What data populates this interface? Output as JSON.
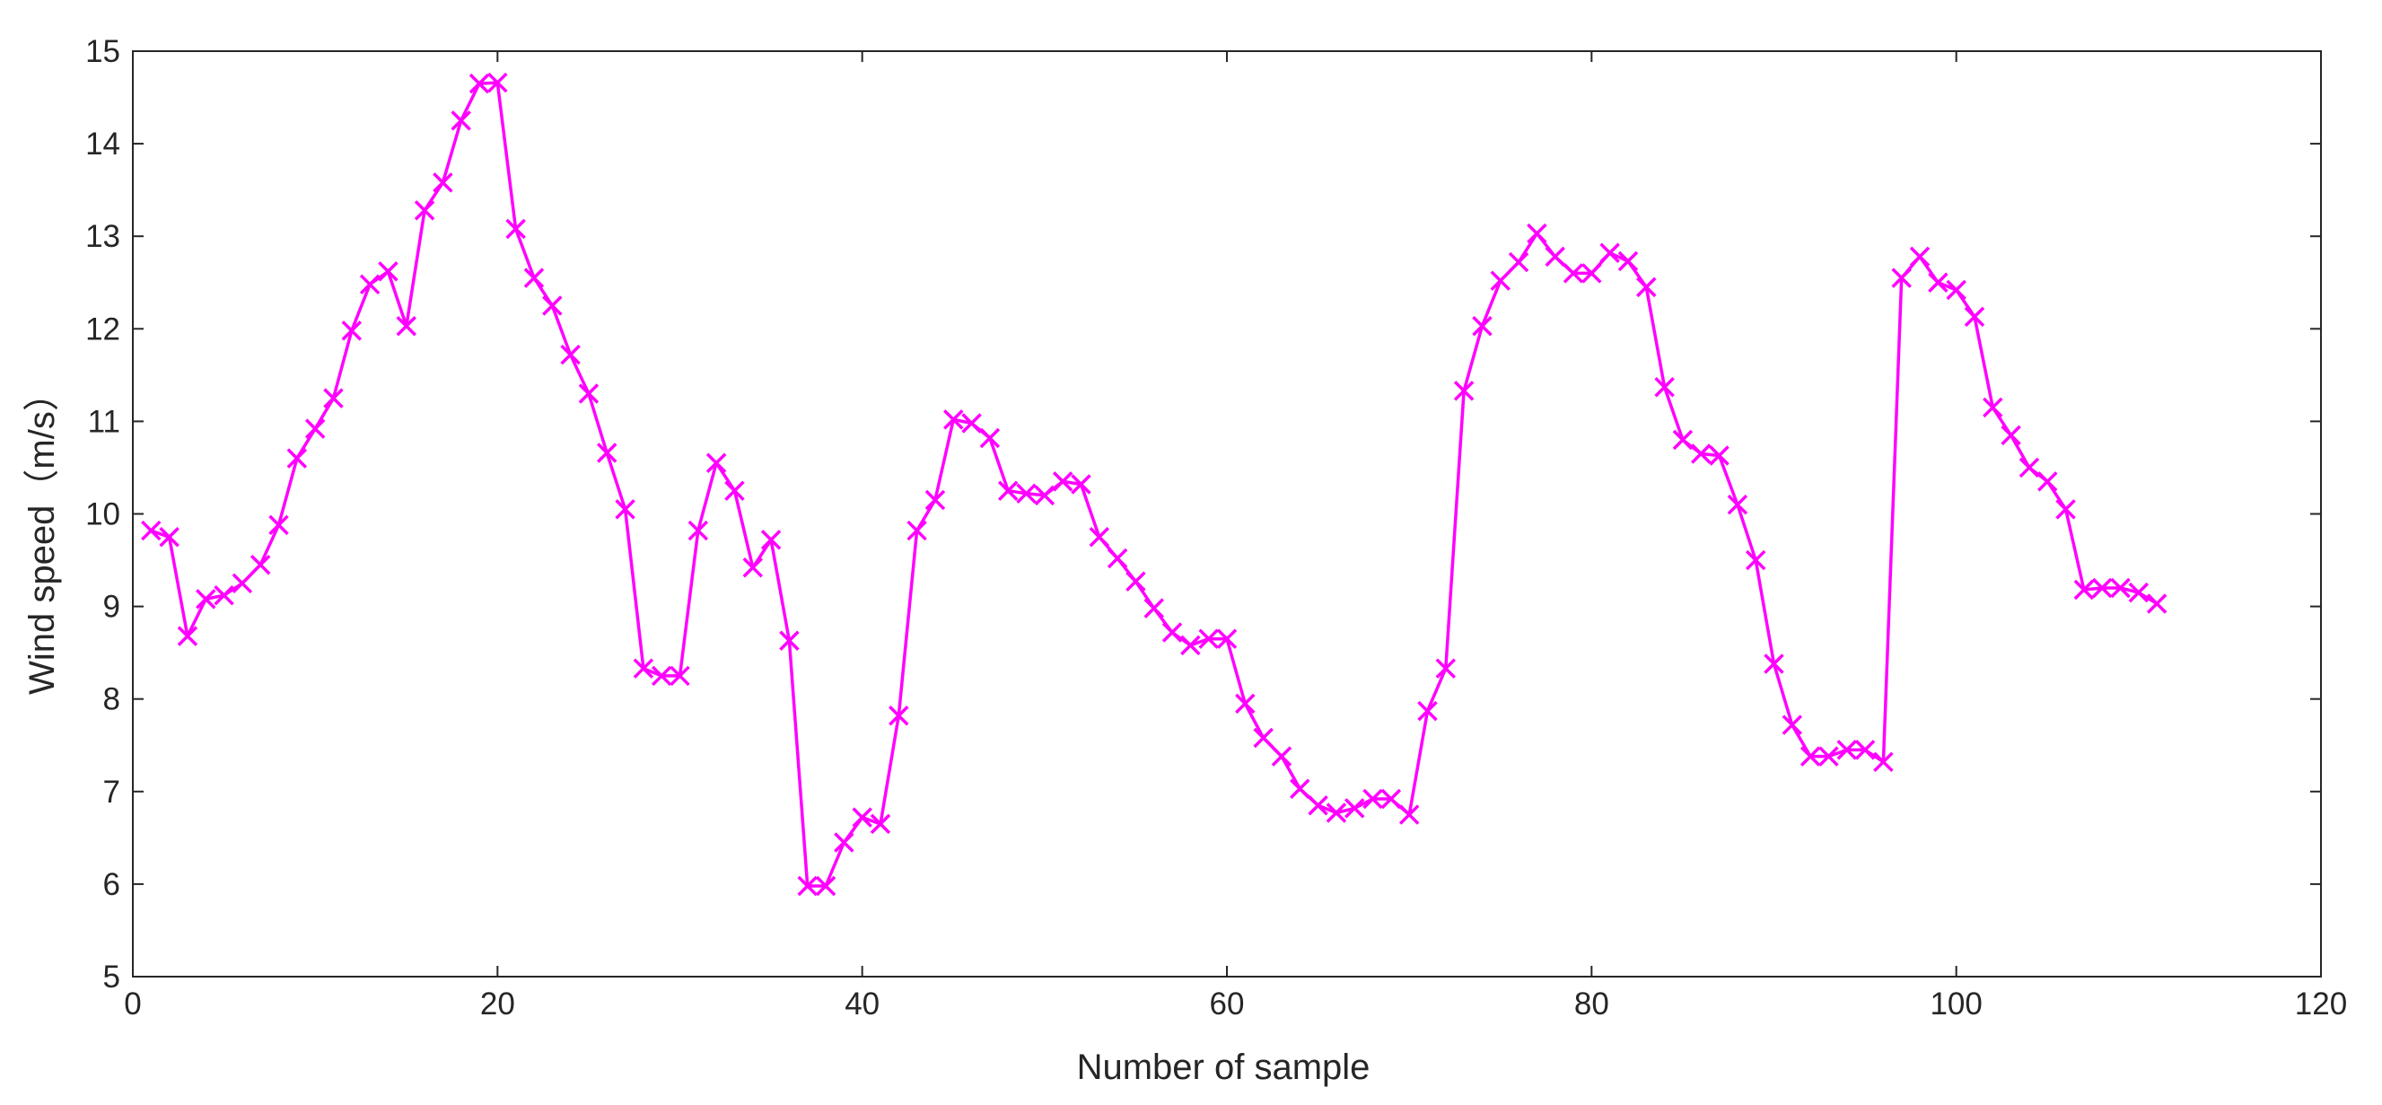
{
  "chart_data": {
    "type": "line",
    "xlabel": "Number of sample",
    "ylabel": "Wind speed（m/s）",
    "xlim": [
      0,
      120
    ],
    "ylim": [
      5,
      15
    ],
    "xticks": [
      0,
      20,
      40,
      60,
      80,
      100,
      120
    ],
    "yticks": [
      5,
      6,
      7,
      8,
      9,
      10,
      11,
      12,
      13,
      14,
      15
    ],
    "xtick_labels": [
      "0",
      "20",
      "40",
      "60",
      "80",
      "100",
      "120"
    ],
    "ytick_labels": [
      "5",
      "6",
      "7",
      "8",
      "9",
      "10",
      "11",
      "12",
      "13",
      "14",
      "15"
    ],
    "grid": false,
    "marker": "x",
    "line_color": "#FF00FF",
    "series": [
      {
        "x": [
          1,
          2,
          3,
          4,
          5,
          6,
          7,
          8,
          9,
          10,
          11,
          12,
          13,
          14,
          15,
          16,
          17,
          18,
          19,
          20,
          21,
          22,
          23,
          24,
          25,
          26,
          27,
          28,
          29,
          30,
          31,
          32,
          33,
          34,
          35,
          36,
          37,
          38,
          39,
          40,
          41,
          42,
          43,
          44,
          45,
          46,
          47,
          48,
          49,
          50,
          51,
          52,
          53,
          54,
          55,
          56,
          57,
          58,
          59,
          60,
          61,
          62,
          63,
          64,
          65,
          66,
          67,
          68,
          69,
          70,
          71,
          72,
          73,
          74,
          75,
          76,
          77,
          78,
          79,
          80,
          81,
          82,
          83,
          84,
          85,
          86,
          87,
          88,
          89,
          90,
          91,
          92,
          93,
          94,
          95,
          96,
          97,
          98,
          99,
          100,
          101,
          102,
          103,
          104,
          105,
          106,
          107,
          108,
          109,
          110,
          111
        ],
        "values": [
          9.82,
          9.75,
          8.68,
          9.08,
          9.12,
          9.25,
          9.45,
          9.88,
          10.6,
          10.92,
          11.25,
          11.98,
          12.48,
          12.62,
          12.03,
          13.28,
          13.58,
          14.25,
          14.65,
          14.66,
          13.08,
          12.55,
          12.25,
          11.72,
          11.3,
          10.66,
          10.05,
          8.33,
          8.25,
          8.25,
          9.82,
          10.55,
          10.25,
          9.42,
          9.72,
          8.63,
          5.98,
          5.98,
          6.45,
          6.72,
          6.65,
          7.82,
          9.82,
          10.15,
          11.02,
          10.98,
          10.82,
          10.25,
          10.22,
          10.2,
          10.35,
          10.32,
          9.75,
          9.52,
          9.27,
          8.98,
          8.72,
          8.58,
          8.65,
          8.65,
          7.95,
          7.58,
          7.38,
          7.03,
          6.85,
          6.77,
          6.82,
          6.92,
          6.92,
          6.75,
          7.87,
          8.33,
          11.33,
          12.03,
          12.52,
          12.72,
          13.03,
          12.78,
          12.6,
          12.6,
          12.82,
          12.73,
          12.45,
          11.37,
          10.8,
          10.65,
          10.63,
          10.1,
          9.5,
          8.38,
          7.72,
          7.38,
          7.38,
          7.45,
          7.45,
          7.32,
          12.55,
          12.78,
          12.5,
          12.42,
          12.13,
          11.15,
          10.85,
          10.5,
          10.35,
          10.05,
          9.18,
          9.2,
          9.2,
          9.15,
          9.03
        ]
      }
    ]
  }
}
